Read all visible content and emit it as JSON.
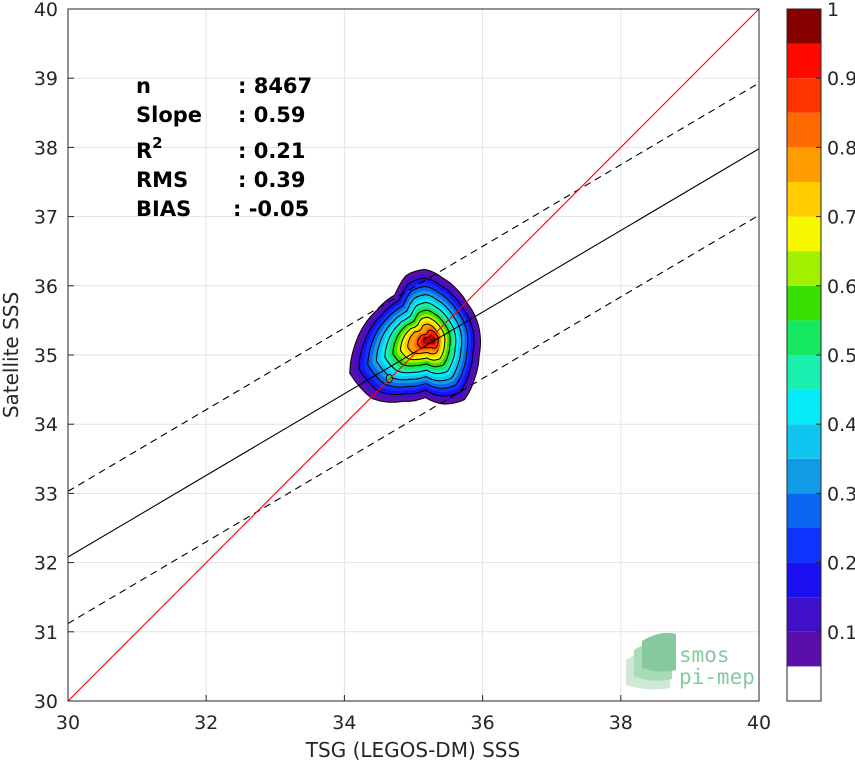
{
  "chart_data": {
    "type": "scatter",
    "subtype": "density-contour",
    "xlabel": "TSG (LEGOS-DM) SSS",
    "ylabel": "Satellite SSS",
    "xlim": [
      30,
      40
    ],
    "ylim": [
      30,
      40
    ],
    "x_ticks": [
      "30",
      "32",
      "34",
      "36",
      "38",
      "40"
    ],
    "y_ticks": [
      "30",
      "31",
      "32",
      "33",
      "34",
      "35",
      "36",
      "37",
      "38",
      "39",
      "40"
    ],
    "grid": true,
    "stats": {
      "n_label": "n",
      "n_value": ": 8467",
      "slope_label": "Slope",
      "slope_value": ": 0.59",
      "r2_label": "R",
      "r2_sup": "2",
      "r2_value": ": 0.21",
      "rms_label": "RMS",
      "rms_value": ": 0.39",
      "bias_label": "BIAS",
      "bias_value": ": -0.05"
    },
    "lines": {
      "identity": {
        "slope": 1,
        "intercept": 0,
        "color": "#ff0000"
      },
      "regression": {
        "slope": 0.59,
        "intercept": 14.38,
        "color": "#000000"
      },
      "upper_bound": {
        "slope": 0.59,
        "intercept": 15.33,
        "color": "#000000",
        "dash": true
      },
      "lower_bound": {
        "slope": 0.59,
        "intercept": 13.42,
        "color": "#000000",
        "dash": true
      }
    },
    "density": {
      "peak": [
        35.3,
        35.28
      ],
      "levels": [
        {
          "level": 0.05,
          "color": "#5a0faa"
        },
        {
          "level": 0.1,
          "color": "#3f10c8"
        },
        {
          "level": 0.15,
          "color": "#1c0ff2"
        },
        {
          "level": 0.2,
          "color": "#0e33ff"
        },
        {
          "level": 0.25,
          "color": "#0a66f0"
        },
        {
          "level": 0.3,
          "color": "#129be6"
        },
        {
          "level": 0.35,
          "color": "#10c6f0"
        },
        {
          "level": 0.4,
          "color": "#05ecf8"
        },
        {
          "level": 0.45,
          "color": "#19f0b0"
        },
        {
          "level": 0.5,
          "color": "#15e860"
        },
        {
          "level": 0.55,
          "color": "#38e000"
        },
        {
          "level": 0.6,
          "color": "#a0f000"
        },
        {
          "level": 0.65,
          "color": "#f6f800"
        },
        {
          "level": 0.7,
          "color": "#ffcc00"
        },
        {
          "level": 0.75,
          "color": "#ff9c00"
        },
        {
          "level": 0.8,
          "color": "#ff6a00"
        },
        {
          "level": 0.85,
          "color": "#ff3500"
        },
        {
          "level": 0.9,
          "color": "#ff0800"
        },
        {
          "level": 0.95,
          "color": "#d70000"
        },
        {
          "level": 1.0,
          "color": "#870000"
        }
      ]
    },
    "colorbar": {
      "range": [
        0,
        1
      ],
      "tick_values": [
        0.1,
        0.2,
        0.3,
        0.4,
        0.5,
        0.6,
        0.7,
        0.8,
        0.9,
        1
      ],
      "tick_labels": [
        "0.1",
        "0.2",
        "0.3",
        "0.4",
        "0.5",
        "0.6",
        "0.7",
        "0.8",
        "0.9",
        "1"
      ],
      "bottom_color": "#ffffff"
    },
    "watermark": {
      "line1": "smos",
      "line2": "pi-mep",
      "color": "#86c99f"
    }
  }
}
